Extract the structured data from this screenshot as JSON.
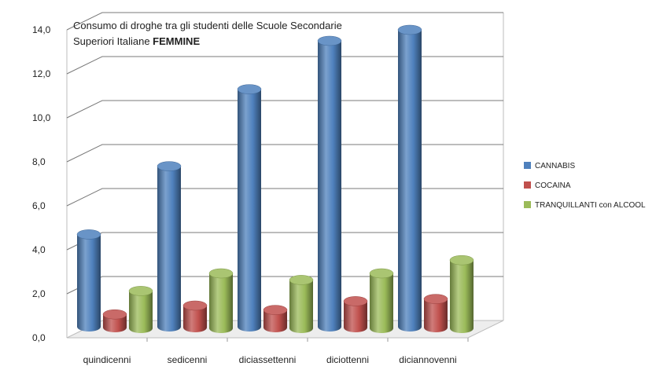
{
  "chart_data": {
    "type": "bar",
    "title_line1": "Consumo di droghe tra gli studenti delle Scuole Secondarie",
    "title_line2_prefix": "Superiori Italiane  ",
    "title_line2_bold": "FEMMINE",
    "categories": [
      "quindicenni",
      "sedicenni",
      "diciassettenni",
      "diciottenni",
      "diciannovenni"
    ],
    "series": [
      {
        "name": "CANNABIS",
        "values": [
          4.2,
          7.3,
          10.8,
          13.0,
          13.5
        ],
        "color": "#4f81bd"
      },
      {
        "name": "COCAINA",
        "values": [
          0.6,
          1.0,
          0.8,
          1.2,
          1.3
        ],
        "color": "#c0504d"
      },
      {
        "name": "TRANQUILLANTI  con ALCOOL",
        "values": [
          1.7,
          2.5,
          2.2,
          2.5,
          3.1
        ],
        "color": "#9bbb59"
      }
    ],
    "ylim": [
      0,
      14
    ],
    "yticks": [
      "0,0",
      "2,0",
      "4,0",
      "6,0",
      "8,0",
      "10,0",
      "12,0",
      "14,0"
    ],
    "grid": true,
    "legend_position": "right",
    "style": "3d-cylinder"
  }
}
